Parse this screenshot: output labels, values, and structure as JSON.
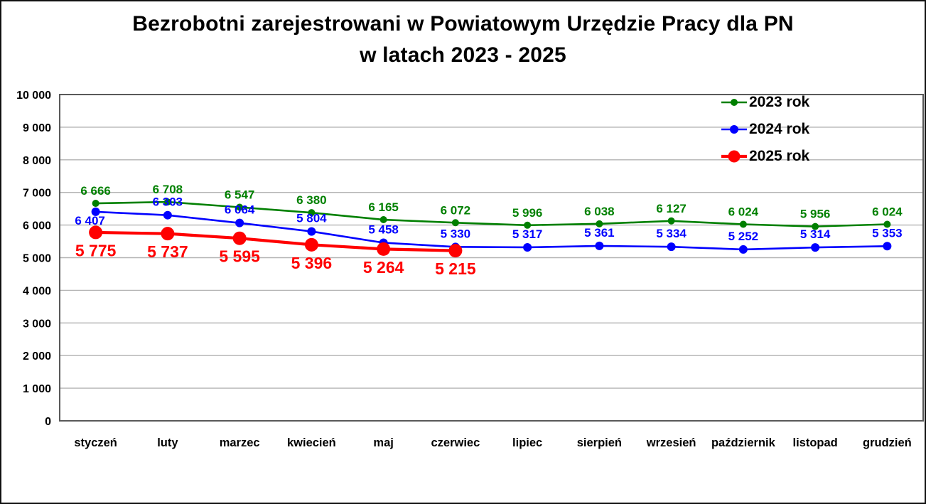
{
  "chart_data": {
    "type": "line",
    "title_line1": "Bezrobotni zarejestrowani w Powiatowym Urzędzie Pracy dla PN",
    "title_line2": "w latach 2023 - 2025",
    "categories": [
      "styczeń",
      "luty",
      "marzec",
      "kwiecień",
      "maj",
      "czerwiec",
      "lipiec",
      "sierpień",
      "wrzesień",
      "październik",
      "listopad",
      "grudzień"
    ],
    "series": [
      {
        "name": "2023 rok",
        "color": "#008000",
        "values": [
          6666,
          6708,
          6547,
          6380,
          6165,
          6072,
          5996,
          6038,
          6127,
          6024,
          5956,
          6024
        ],
        "labels": [
          "6 666",
          "6 708",
          "6 547",
          "6 380",
          "6 165",
          "6 072",
          "5 996",
          "6 038",
          "6 127",
          "6 024",
          "5 956",
          "6 024"
        ],
        "marker_radius": 5,
        "line_width": 2.6,
        "label_position": "above",
        "label_font_size": 17
      },
      {
        "name": "2024 rok",
        "color": "#0000ff",
        "values": [
          6407,
          6303,
          6064,
          5804,
          5458,
          5330,
          5317,
          5361,
          5334,
          5252,
          5314,
          5353
        ],
        "labels": [
          "6 407",
          "6 303",
          "6 064",
          "5 804",
          "5 458",
          "5 330",
          "5 317",
          "5 361",
          "5 334",
          "5 252",
          "5 314",
          "5 353"
        ],
        "marker_radius": 6,
        "line_width": 2.6,
        "label_position": "above",
        "label_font_size": 17,
        "label_offsets": {
          "0": {
            "dx": -8,
            "dy": 31
          }
        }
      },
      {
        "name": "2025 rok",
        "color": "#ff0000",
        "values": [
          5775,
          5737,
          5595,
          5396,
          5264,
          5215
        ],
        "labels": [
          "5 775",
          "5 737",
          "5 595",
          "5 396",
          "5 264",
          "5 215"
        ],
        "marker_radius": 9.5,
        "line_width": 4.2,
        "label_position": "below",
        "label_font_size": 23
      }
    ],
    "ylim": [
      0,
      10000
    ],
    "ytick_step": 1000,
    "ytick_labels": [
      "0",
      "1 000",
      "2 000",
      "3 000",
      "4 000",
      "5 000",
      "6 000",
      "7 000",
      "8 000",
      "9 000",
      "10 000"
    ],
    "grid": "horizontal",
    "grid_color": "#b3b3b3",
    "border_color": "#595959",
    "legend_position": "top-right",
    "legend": [
      "2023 rok",
      "2024 rok",
      "2025 rok"
    ]
  }
}
